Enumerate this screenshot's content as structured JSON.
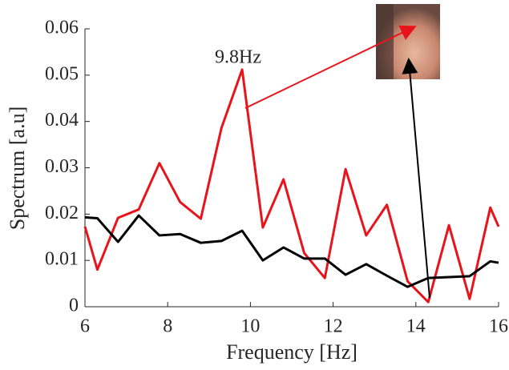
{
  "chart_data": {
    "type": "line",
    "xlabel": "Frequency [Hz]",
    "ylabel": "Spectrum [a.u]",
    "annotation": "9.8Hz",
    "x": [
      6,
      6.3,
      6.8,
      7.3,
      7.8,
      8.3,
      8.8,
      9.3,
      9.8,
      10.3,
      10.8,
      11.3,
      11.8,
      12.3,
      12.8,
      13.3,
      13.8,
      14.3,
      14.8,
      15.3,
      15.8,
      16
    ],
    "series": [
      {
        "color": "#e8141c",
        "values": [
          0.0173,
          0.008,
          0.0192,
          0.021,
          0.031,
          0.0226,
          0.019,
          0.0386,
          0.0512,
          0.0171,
          0.0275,
          0.0116,
          0.0062,
          0.0297,
          0.0154,
          0.022,
          0.0055,
          0.001,
          0.0176,
          0.0017,
          0.0214,
          0.0173
        ]
      },
      {
        "color": "#000000",
        "values": [
          0.0193,
          0.0191,
          0.014,
          0.0197,
          0.0154,
          0.0157,
          0.0138,
          0.0142,
          0.0164,
          0.01,
          0.0128,
          0.0104,
          0.0104,
          0.0069,
          0.0092,
          0.0067,
          0.0043,
          0.0062,
          0.0064,
          0.0066,
          0.0098,
          0.0095
        ]
      }
    ],
    "xlim": [
      6,
      16
    ],
    "xticks": [
      6,
      8,
      10,
      12,
      14,
      16
    ],
    "ylim": [
      0,
      0.06
    ],
    "yticks": [
      0,
      0.01,
      0.02,
      0.03,
      0.04,
      0.05,
      0.06
    ]
  }
}
